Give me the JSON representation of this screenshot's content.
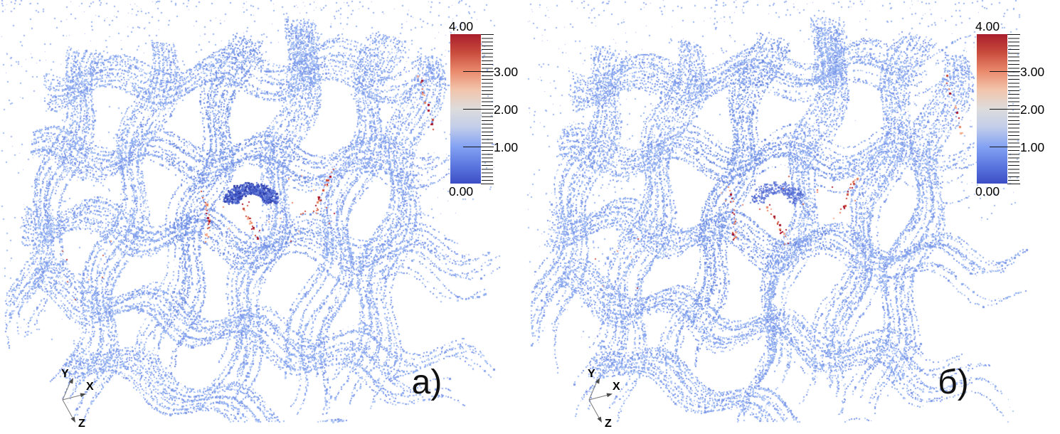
{
  "figure": {
    "panels": [
      {
        "id": "a",
        "subfig_label": "а)"
      },
      {
        "id": "b",
        "subfig_label": "б)"
      }
    ],
    "orientation_axes": {
      "x": "X",
      "y": "Y",
      "z": "Z"
    },
    "colorbar": {
      "max_label": "4.00",
      "min_label": "0.00",
      "side_labels": [
        "3.00",
        "2.00",
        "1.00"
      ],
      "range": [
        0.0,
        4.0
      ],
      "colormap": "cool-to-warm",
      "gradient_stops_top_to_bottom": [
        "#a91e2c",
        "#ea8b6e",
        "#dddcdc",
        "#85a3f3",
        "#3c4ec5"
      ]
    }
  },
  "chart_data": {
    "type": "scatter",
    "title": "",
    "subfigure_labels": [
      "а)",
      "б)"
    ],
    "content": "Two nearly identical 3D point-cloud renderings of a woven fiber-bundle (textile) structure, colored by a scalar field",
    "color_scale": {
      "min": 0.0,
      "max": 4.0,
      "ticks": [
        0.0,
        1.0,
        2.0,
        3.0,
        4.0
      ],
      "tick_labels": [
        "0.00",
        "1.00",
        "2.00",
        "3.00",
        "4.00"
      ],
      "colormap": "cool-to-warm (blue → white → red)",
      "orientation": "vertical",
      "legend_position": "right of each subfigure"
    },
    "dominant_point_value_approx": 1.0,
    "hotspot_values_approx": [
      3.0,
      4.0
    ],
    "orientation_axes": [
      "X",
      "Y",
      "Z"
    ],
    "grid": false
  },
  "render": {
    "background": "#ffffff",
    "dot_palette": [
      "#9db9f3",
      "#8caaf0",
      "#b3c9f6",
      "#7d97e8"
    ],
    "dot_palette_dark": [
      "#7b99e8",
      "#6a87dd",
      "#8ea9ec"
    ],
    "noise_color": "#8fabef",
    "blob_palette": [
      "#3a4fc0",
      "#4e66cf",
      "#2b3aa6",
      "#6d83da"
    ],
    "blob_palette_light": [
      "#5d74d6",
      "#7289df",
      "#4e66cf",
      "#8a9ce4"
    ],
    "red_palette": [
      "#a50f26",
      "#cc4936",
      "#e8825f",
      "#f4ab8c"
    ],
    "seeds": {
      "a": 1337,
      "b": 9021
    }
  }
}
